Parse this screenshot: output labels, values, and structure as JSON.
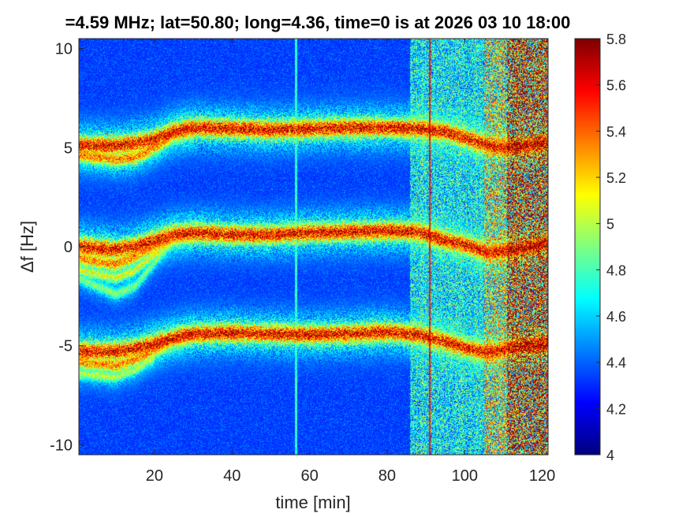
{
  "chart_data": {
    "type": "heatmap",
    "title": "=4.59 MHz;  lat=50.80; long=4.36, time=0 is at 2026 03 10 18:00",
    "xlabel": "time [min]",
    "ylabel": "Δf [Hz]",
    "xlim": [
      0.5,
      121.5
    ],
    "ylim": [
      -10.5,
      10.5
    ],
    "x_ticks": [
      20,
      40,
      60,
      80,
      100,
      120
    ],
    "x_tick_labels": [
      "20",
      "40",
      "60",
      "80",
      "100",
      "120"
    ],
    "y_ticks": [
      10,
      5,
      0,
      -5,
      -10
    ],
    "y_tick_labels": [
      "10",
      "5",
      "0",
      "-5",
      "-10"
    ],
    "colormap": "jet",
    "clim": [
      4,
      5.8
    ],
    "colorbar_ticks": [
      5.8,
      5.6,
      5.4,
      5.2,
      5,
      4.8,
      4.6,
      4.4,
      4.2,
      4
    ],
    "colorbar_tick_labels": [
      "5.8",
      "5.6",
      "5.4",
      "5.2",
      "5",
      "4.8",
      "4.6",
      "4.4",
      "4.2",
      "4"
    ],
    "background_level": 4.3,
    "traces": [
      {
        "points": [
          [
            0.5,
            5.1
          ],
          [
            10,
            5.1
          ],
          [
            15,
            5.2
          ],
          [
            20,
            5.4
          ],
          [
            25,
            5.8
          ],
          [
            30,
            6.0
          ],
          [
            40,
            5.95
          ],
          [
            50,
            5.9
          ],
          [
            60,
            5.95
          ],
          [
            70,
            6.0
          ],
          [
            80,
            6.0
          ],
          [
            88,
            5.95
          ],
          [
            95,
            5.8
          ],
          [
            100,
            5.5
          ],
          [
            106,
            5.1
          ],
          [
            110,
            5.0
          ],
          [
            115,
            5.05
          ],
          [
            121.5,
            5.3
          ]
        ],
        "intensity": 5.8,
        "width": 0.3
      },
      {
        "points": [
          [
            0.5,
            4.6
          ],
          [
            10,
            4.4
          ],
          [
            15,
            4.5
          ],
          [
            20,
            5.0
          ],
          [
            25,
            5.7
          ],
          [
            30,
            5.9
          ]
        ],
        "intensity": 5.5,
        "width": 0.25
      },
      {
        "points": [
          [
            0.5,
            0.0
          ],
          [
            10,
            -0.15
          ],
          [
            15,
            0.0
          ],
          [
            20,
            0.3
          ],
          [
            25,
            0.6
          ],
          [
            30,
            0.7
          ],
          [
            40,
            0.6
          ],
          [
            50,
            0.6
          ],
          [
            60,
            0.7
          ],
          [
            70,
            0.75
          ],
          [
            80,
            0.8
          ],
          [
            88,
            0.75
          ],
          [
            95,
            0.3
          ],
          [
            100,
            0.1
          ],
          [
            106,
            -0.3
          ],
          [
            110,
            -0.2
          ],
          [
            115,
            -0.1
          ],
          [
            121.5,
            0.2
          ]
        ],
        "intensity": 5.8,
        "width": 0.3
      },
      {
        "points": [
          [
            0.5,
            -0.6
          ],
          [
            10,
            -0.9
          ],
          [
            15,
            -0.5
          ],
          [
            20,
            0.0
          ],
          [
            25,
            0.5
          ],
          [
            30,
            0.6
          ]
        ],
        "intensity": 5.5,
        "width": 0.25
      },
      {
        "points": [
          [
            0.5,
            -1.2
          ],
          [
            10,
            -1.6
          ],
          [
            15,
            -1.2
          ],
          [
            20,
            -0.4
          ],
          [
            25,
            0.3
          ]
        ],
        "intensity": 5.2,
        "width": 0.2
      },
      {
        "points": [
          [
            0.5,
            -1.6
          ],
          [
            10,
            -2.4
          ],
          [
            15,
            -2.0
          ],
          [
            20,
            -0.8
          ],
          [
            24,
            0.1
          ]
        ],
        "intensity": 5.0,
        "width": 0.2
      },
      {
        "points": [
          [
            0.5,
            -5.3
          ],
          [
            10,
            -5.3
          ],
          [
            15,
            -5.15
          ],
          [
            20,
            -4.9
          ],
          [
            25,
            -4.6
          ],
          [
            30,
            -4.4
          ],
          [
            40,
            -4.35
          ],
          [
            50,
            -4.4
          ],
          [
            60,
            -4.45
          ],
          [
            70,
            -4.4
          ],
          [
            80,
            -4.3
          ],
          [
            88,
            -4.45
          ],
          [
            95,
            -4.8
          ],
          [
            100,
            -5.1
          ],
          [
            106,
            -5.35
          ],
          [
            110,
            -5.2
          ],
          [
            115,
            -5.0
          ],
          [
            121.5,
            -4.9
          ]
        ],
        "intensity": 5.8,
        "width": 0.3
      },
      {
        "points": [
          [
            0.5,
            -5.8
          ],
          [
            10,
            -6.0
          ],
          [
            15,
            -5.7
          ],
          [
            20,
            -5.2
          ],
          [
            25,
            -4.7
          ],
          [
            30,
            -4.5
          ]
        ],
        "intensity": 5.5,
        "width": 0.25
      },
      {
        "points": [
          [
            0.5,
            -6.4
          ],
          [
            10,
            -6.6
          ],
          [
            15,
            -6.2
          ],
          [
            20,
            -5.6
          ]
        ],
        "intensity": 5.1,
        "width": 0.2
      }
    ],
    "noisy_regions": [
      {
        "x_range": [
          86,
          105
        ],
        "level_offset": 0.5
      },
      {
        "x_range": [
          105,
          111
        ],
        "level_offset": 0.9
      },
      {
        "x_range": [
          111,
          121.5
        ],
        "level_offset": 1.4
      }
    ],
    "vertical_lines": [
      {
        "x": 56.5,
        "intensity": 4.9
      },
      {
        "x": 91.0,
        "intensity": 5.7
      }
    ]
  }
}
